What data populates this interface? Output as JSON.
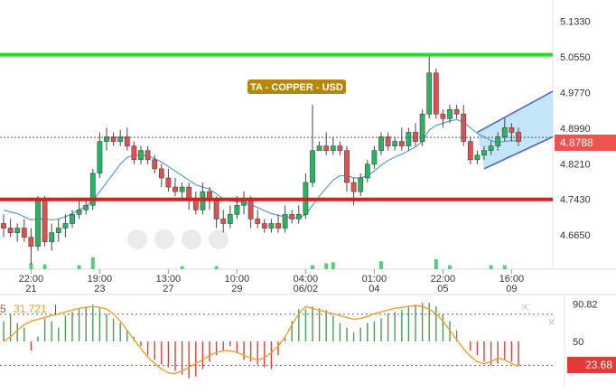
{
  "chart_data": [
    {
      "type": "candlestick",
      "title": "TA - COPPER - USD",
      "ylim": [
        4.59,
        5.18
      ],
      "y_ticks": [
        "5.1330",
        "5.0550",
        "4.9770",
        "4.8990",
        "4.8210",
        "4.7430",
        "4.6650"
      ],
      "current_price": "4.8788",
      "resistance_level": 5.06,
      "support_level": 4.743,
      "x_labels": [
        {
          "time": "22:00",
          "date": "21",
          "index": 4
        },
        {
          "time": "19:00",
          "date": "23",
          "index": 14
        },
        {
          "time": "13:00",
          "date": "27",
          "index": 24
        },
        {
          "time": "10:00",
          "date": "29",
          "index": 34
        },
        {
          "time": "04:00",
          "date": "06/02",
          "index": 44
        },
        {
          "time": "01:00",
          "date": "04",
          "index": 54
        },
        {
          "time": "22:00",
          "date": "05",
          "index": 64
        },
        {
          "time": "16:00",
          "date": "09",
          "index": 74
        }
      ],
      "candles": [
        [
          4.69,
          4.68,
          4.71,
          4.66
        ],
        [
          4.68,
          4.67,
          4.7,
          4.66
        ],
        [
          4.67,
          4.68,
          4.69,
          4.65
        ],
        [
          4.68,
          4.66,
          4.7,
          4.65
        ],
        [
          4.66,
          4.64,
          4.68,
          4.6
        ],
        [
          4.64,
          4.74,
          4.75,
          4.63
        ],
        [
          4.74,
          4.65,
          4.75,
          4.64
        ],
        [
          4.65,
          4.67,
          4.69,
          4.63
        ],
        [
          4.67,
          4.68,
          4.7,
          4.65
        ],
        [
          4.68,
          4.69,
          4.71,
          4.66
        ],
        [
          4.69,
          4.71,
          4.72,
          4.68
        ],
        [
          4.71,
          4.72,
          4.74,
          4.7
        ],
        [
          4.72,
          4.73,
          4.74,
          4.71
        ],
        [
          4.73,
          4.8,
          4.81,
          4.72
        ],
        [
          4.8,
          4.87,
          4.89,
          4.79
        ],
        [
          4.87,
          4.88,
          4.9,
          4.85
        ],
        [
          4.88,
          4.87,
          4.89,
          4.86
        ],
        [
          4.87,
          4.88,
          4.895,
          4.86
        ],
        [
          4.88,
          4.86,
          4.9,
          4.85
        ],
        [
          4.86,
          4.83,
          4.87,
          4.82
        ],
        [
          4.83,
          4.85,
          4.86,
          4.82
        ],
        [
          4.85,
          4.83,
          4.86,
          4.82
        ],
        [
          4.83,
          4.81,
          4.84,
          4.8
        ],
        [
          4.81,
          4.79,
          4.82,
          4.77
        ],
        [
          4.79,
          4.77,
          4.81,
          4.76
        ],
        [
          4.77,
          4.76,
          4.79,
          4.75
        ],
        [
          4.76,
          4.77,
          4.78,
          4.74
        ],
        [
          4.77,
          4.74,
          4.78,
          4.72
        ],
        [
          4.74,
          4.72,
          4.76,
          4.71
        ],
        [
          4.72,
          4.76,
          4.78,
          4.71
        ],
        [
          4.76,
          4.74,
          4.77,
          4.72
        ],
        [
          4.74,
          4.7,
          4.75,
          4.68
        ],
        [
          4.7,
          4.69,
          4.72,
          4.67
        ],
        [
          4.69,
          4.71,
          4.73,
          4.68
        ],
        [
          4.71,
          4.73,
          4.75,
          4.7
        ],
        [
          4.73,
          4.74,
          4.76,
          4.71
        ],
        [
          4.74,
          4.7,
          4.75,
          4.68
        ],
        [
          4.7,
          4.69,
          4.72,
          4.68
        ],
        [
          4.69,
          4.68,
          4.7,
          4.67
        ],
        [
          4.68,
          4.69,
          4.7,
          4.67
        ],
        [
          4.69,
          4.68,
          4.71,
          4.67
        ],
        [
          4.68,
          4.71,
          4.73,
          4.67
        ],
        [
          4.71,
          4.7,
          4.72,
          4.69
        ],
        [
          4.7,
          4.71,
          4.73,
          4.69
        ],
        [
          4.71,
          4.78,
          4.8,
          4.7
        ],
        [
          4.78,
          4.85,
          4.95,
          4.77
        ],
        [
          4.85,
          4.86,
          4.87,
          4.85
        ],
        [
          4.86,
          4.85,
          4.89,
          4.84
        ],
        [
          4.85,
          4.86,
          4.88,
          4.84
        ],
        [
          4.86,
          4.85,
          4.87,
          4.84
        ],
        [
          4.85,
          4.78,
          4.86,
          4.76
        ],
        [
          4.78,
          4.76,
          4.79,
          4.73
        ],
        [
          4.76,
          4.79,
          4.8,
          4.75
        ],
        [
          4.79,
          4.82,
          4.83,
          4.78
        ],
        [
          4.82,
          4.85,
          4.86,
          4.81
        ],
        [
          4.85,
          4.88,
          4.89,
          4.84
        ],
        [
          4.88,
          4.86,
          4.89,
          4.85
        ],
        [
          4.86,
          4.87,
          4.88,
          4.85
        ],
        [
          4.87,
          4.86,
          4.9,
          4.85
        ],
        [
          4.86,
          4.89,
          4.9,
          4.85
        ],
        [
          4.89,
          4.87,
          4.91,
          4.86
        ],
        [
          4.87,
          4.93,
          4.94,
          4.86
        ],
        [
          4.93,
          5.02,
          5.06,
          4.92
        ],
        [
          5.02,
          4.93,
          5.03,
          4.92
        ],
        [
          4.93,
          4.92,
          4.94,
          4.9
        ],
        [
          4.92,
          4.94,
          4.95,
          4.91
        ],
        [
          4.94,
          4.93,
          4.95,
          4.92
        ],
        [
          4.93,
          4.87,
          4.95,
          4.86
        ],
        [
          4.87,
          4.83,
          4.88,
          4.82
        ],
        [
          4.83,
          4.84,
          4.85,
          4.82
        ],
        [
          4.84,
          4.85,
          4.86,
          4.83
        ],
        [
          4.85,
          4.86,
          4.87,
          4.84
        ],
        [
          4.86,
          4.88,
          4.89,
          4.85
        ],
        [
          4.88,
          4.9,
          4.92,
          4.87
        ],
        [
          4.9,
          4.89,
          4.91,
          4.87
        ],
        [
          4.89,
          4.87,
          4.9,
          4.86
        ]
      ],
      "ma": [
        4.72,
        4.715,
        4.712,
        4.705,
        4.698,
        4.7,
        4.7,
        4.698,
        4.7,
        4.705,
        4.712,
        4.72,
        4.728,
        4.74,
        4.76,
        4.78,
        4.8,
        4.82,
        4.835,
        4.84,
        4.84,
        4.838,
        4.832,
        4.825,
        4.815,
        4.805,
        4.795,
        4.785,
        4.775,
        4.77,
        4.765,
        4.755,
        4.745,
        4.74,
        4.738,
        4.737,
        4.732,
        4.725,
        4.718,
        4.712,
        4.708,
        4.705,
        4.703,
        4.702,
        4.71,
        4.73,
        4.75,
        4.768,
        4.785,
        4.795,
        4.795,
        4.79,
        4.79,
        4.795,
        4.805,
        4.818,
        4.828,
        4.836,
        4.842,
        4.85,
        4.858,
        4.87,
        4.895,
        4.905,
        4.91,
        4.915,
        4.918,
        4.912,
        4.9,
        4.888,
        4.88,
        4.872,
        4.868,
        4.87,
        4.872,
        4.87
      ],
      "channel": {
        "upper": [
          [
            69,
            4.89
          ],
          [
            80,
            4.98
          ]
        ],
        "lower": [
          [
            70,
            4.81
          ],
          [
            80,
            4.88
          ]
        ]
      },
      "volume_bars": [
        {
          "index": 4,
          "size": 0.3
        },
        {
          "index": 6,
          "size": 0.25
        },
        {
          "index": 11,
          "size": 0.2
        },
        {
          "index": 13,
          "size": 0.6
        },
        {
          "index": 26,
          "size": 0.15
        },
        {
          "index": 31,
          "size": 0.15
        },
        {
          "index": 45,
          "size": 0.2
        },
        {
          "index": 47,
          "size": 0.3
        },
        {
          "index": 48,
          "size": 0.35
        },
        {
          "index": 55,
          "size": 0.4
        },
        {
          "index": 63,
          "size": 0.5
        },
        {
          "index": 65,
          "size": 0.2
        },
        {
          "index": 71,
          "size": 0.2
        },
        {
          "index": 73,
          "size": 0.2
        }
      ]
    },
    {
      "type": "oscillator",
      "ylim": [
        0,
        100
      ],
      "y_ticks": [
        "90.82",
        "50"
      ],
      "value_left_prefix": "5",
      "value_label": "31.721",
      "marker": "|",
      "current_value": "23.68",
      "upper_level": 79.5,
      "lower_level": 24,
      "bars": [
        72,
        80,
        70,
        65,
        40,
        55,
        75,
        72,
        65,
        78,
        82,
        85,
        88,
        90,
        86,
        80,
        75,
        70,
        62,
        55,
        45,
        35,
        30,
        25,
        22,
        18,
        14,
        10,
        12,
        20,
        28,
        35,
        40,
        45,
        38,
        30,
        28,
        25,
        22,
        20,
        35,
        55,
        72,
        85,
        85,
        88,
        86,
        84,
        78,
        70,
        65,
        60,
        65,
        70,
        72,
        75,
        80,
        82,
        84,
        88,
        90,
        92,
        92,
        88,
        80,
        72,
        62,
        50,
        40,
        35,
        28,
        24,
        26,
        30,
        28,
        24
      ],
      "signal": [
        50,
        55,
        62,
        68,
        72,
        74,
        76,
        78,
        80,
        82,
        84,
        86,
        87,
        88,
        87,
        85,
        80,
        72,
        62,
        52,
        42,
        33,
        26,
        20,
        16,
        15,
        18,
        22,
        26,
        30,
        35,
        38,
        40,
        40,
        38,
        35,
        32,
        30,
        32,
        38,
        45,
        55,
        68,
        80,
        88,
        86,
        84,
        82,
        80,
        78,
        76,
        74,
        75,
        77,
        80,
        82,
        84,
        86,
        87,
        88,
        89,
        88,
        85,
        80,
        72,
        62,
        52,
        42,
        34,
        28,
        26,
        28,
        32,
        30,
        26,
        23
      ]
    }
  ],
  "ui": {
    "close_icon_label": "×",
    "collapse_icon_label": "⇱"
  }
}
